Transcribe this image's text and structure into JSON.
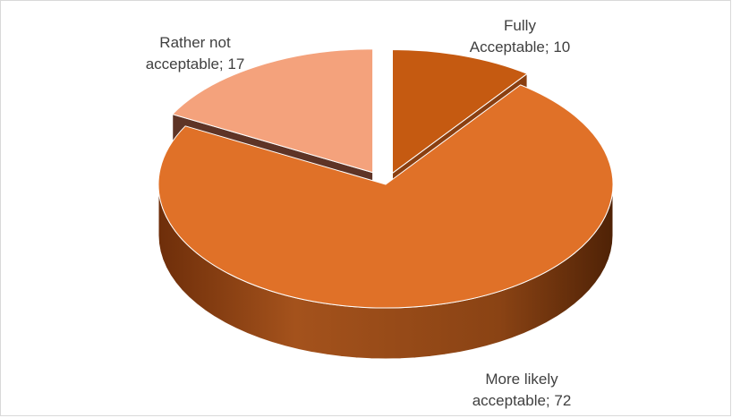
{
  "chart_data": {
    "type": "pie",
    "style": "3d-exploded",
    "categories": [
      "Fully Acceptable",
      "More likely acceptable",
      "Rather not acceptable"
    ],
    "values": [
      10,
      72,
      17
    ],
    "data_labels": [
      [
        "Fully",
        "Acceptable; 10"
      ],
      [
        "More likely",
        "acceptable; 72"
      ],
      [
        "Rather not",
        "acceptable; 17"
      ]
    ],
    "colors": [
      "#c55a11",
      "#e07128",
      "#f4a27c"
    ],
    "side_colors": [
      "#8a3c0c",
      "#7a3a10",
      "#5e3426"
    ],
    "title": "",
    "legend": "none"
  }
}
